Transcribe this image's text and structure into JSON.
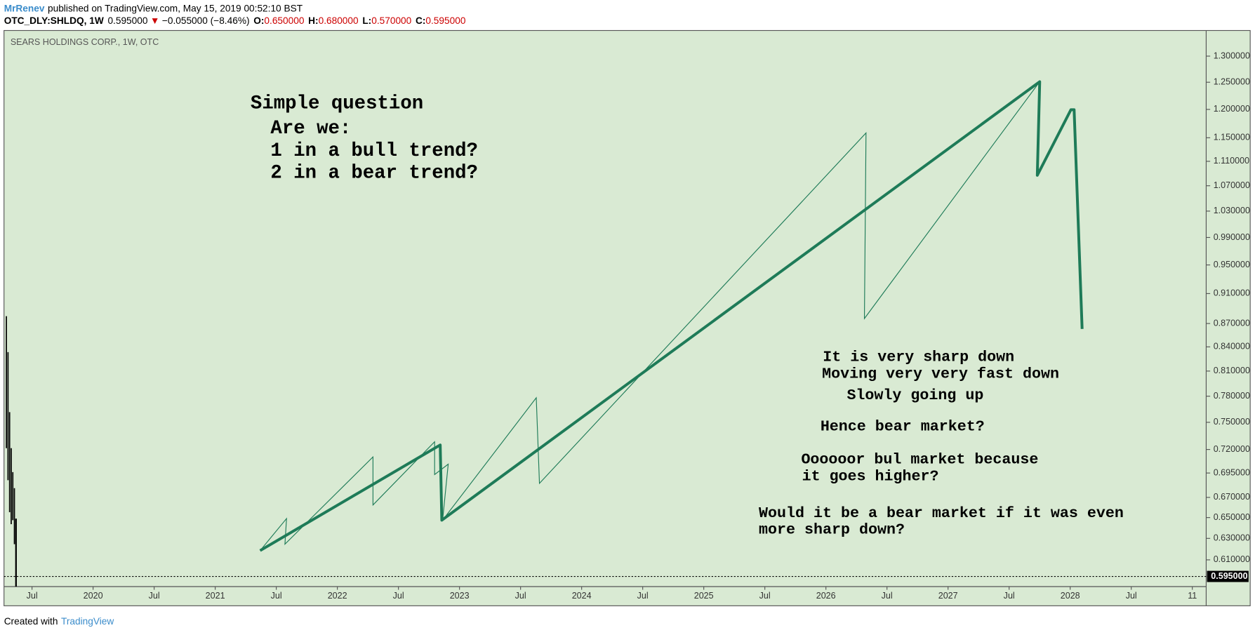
{
  "header": {
    "author": "MrRenev",
    "published": "published on TradingView.com, May 15, 2019 00:52:10 BST",
    "symbol": "OTC_DLY:SHLDQ, 1W",
    "price": "0.595000",
    "change": "−0.055000 (−8.46%)",
    "open_label": "O:",
    "open": "0.650000",
    "high_label": "H:",
    "high": "0.680000",
    "low_label": "L:",
    "low": "0.570000",
    "close_label": "C:",
    "close": "0.595000"
  },
  "chart_data": {
    "type": "candlestick",
    "title": "SEARS HOLDINGS CORP., 1W, OTC",
    "log_scale": true,
    "ylim": [
      0.586,
      1.351
    ],
    "yticks": [
      {
        "value": 1.3,
        "label": "1.300000"
      },
      {
        "value": 1.25,
        "label": "1.250000"
      },
      {
        "value": 1.2,
        "label": "1.200000"
      },
      {
        "value": 1.15,
        "label": "1.150000"
      },
      {
        "value": 1.11,
        "label": "1.110000"
      },
      {
        "value": 1.07,
        "label": "1.070000"
      },
      {
        "value": 1.03,
        "label": "1.030000"
      },
      {
        "value": 0.99,
        "label": "0.990000"
      },
      {
        "value": 0.95,
        "label": "0.950000"
      },
      {
        "value": 0.91,
        "label": "0.910000"
      },
      {
        "value": 0.87,
        "label": "0.870000"
      },
      {
        "value": 0.84,
        "label": "0.840000"
      },
      {
        "value": 0.81,
        "label": "0.810000"
      },
      {
        "value": 0.78,
        "label": "0.780000"
      },
      {
        "value": 0.75,
        "label": "0.750000"
      },
      {
        "value": 0.72,
        "label": "0.720000"
      },
      {
        "value": 0.695,
        "label": "0.695000"
      },
      {
        "value": 0.67,
        "label": "0.670000"
      },
      {
        "value": 0.65,
        "label": "0.650000"
      },
      {
        "value": 0.63,
        "label": "0.630000"
      },
      {
        "value": 0.61,
        "label": "0.610000"
      }
    ],
    "last_price": {
      "value": 0.595,
      "label": "0.595000"
    },
    "categories": [
      "Jul",
      "2020",
      "Jul",
      "2021",
      "Jul",
      "2022",
      "Jul",
      "2023",
      "Jul",
      "2024",
      "Jul",
      "2025",
      "Jul",
      "2026",
      "Jul",
      "2027",
      "Jul",
      "2028",
      "Jul",
      "11"
    ],
    "annotations": [
      "Simple question",
      "Are we:",
      "1 in a bull trend?",
      "2 in a bear trend?",
      "It is very sharp down",
      "Moving very very fast down",
      "Slowly going up",
      "Hence bear market?",
      "Oooooor bul market because",
      "it goes higher?",
      "Would it be a bear market if it was even",
      "more sharp down?"
    ]
  },
  "footer": {
    "created": "Created with",
    "brand": "TradingView"
  }
}
